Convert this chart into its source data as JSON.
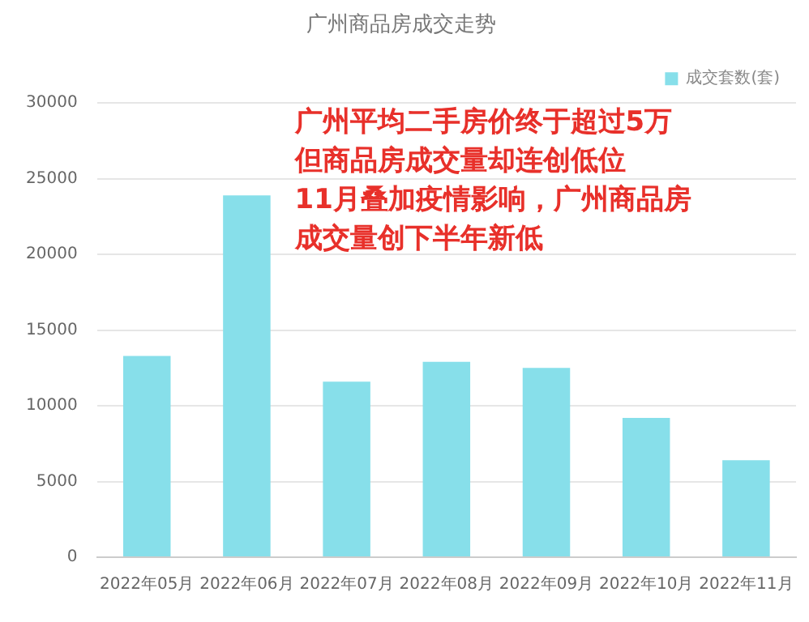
{
  "chart_data": {
    "type": "bar",
    "title": "广州商品房成交走势",
    "categories": [
      "2022年05月",
      "2022年06月",
      "2022年07月",
      "2022年08月",
      "2022年09月",
      "2022年10月",
      "2022年11月"
    ],
    "series": [
      {
        "name": "成交套数(套)",
        "color": "#87dfea",
        "values": [
          13300,
          23900,
          11600,
          12900,
          12500,
          9200,
          6400
        ]
      }
    ],
    "ylim": [
      0,
      30000
    ],
    "yticks": [
      0,
      5000,
      10000,
      15000,
      20000,
      25000,
      30000
    ],
    "grid": "y",
    "legend": "top right",
    "annotations": [
      "广州平均二手房价终于超过5万",
      "但商品房成交量却连创低位",
      "11月叠加疫情影响，广州商品房",
      "成交量创下半年新低"
    ]
  }
}
